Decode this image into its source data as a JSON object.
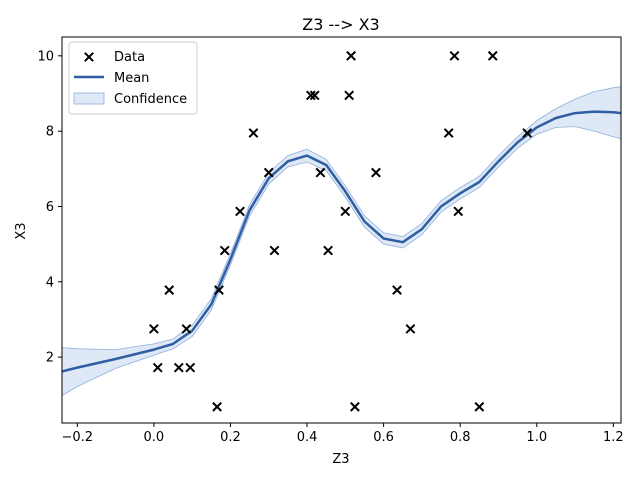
{
  "chart_data": {
    "type": "scatter",
    "title": "Z3 --> X3",
    "xlabel": "Z3",
    "ylabel": "X3",
    "xlim": [
      -0.24,
      1.22
    ],
    "ylim": [
      0.25,
      10.5
    ],
    "xticks": [
      -0.2,
      0.0,
      0.2,
      0.4,
      0.6,
      0.8,
      1.0,
      1.2
    ],
    "xtick_labels": [
      "−0.2",
      "0.0",
      "0.2",
      "0.4",
      "0.6",
      "0.8",
      "1.0",
      "1.2"
    ],
    "yticks": [
      2,
      4,
      6,
      8,
      10
    ],
    "ytick_labels": [
      "2",
      "4",
      "6",
      "8",
      "10"
    ],
    "grid": false,
    "legend": {
      "position": "top-left",
      "entries": [
        {
          "label": "Data",
          "kind": "marker"
        },
        {
          "label": "Mean",
          "kind": "line"
        },
        {
          "label": "Confidence",
          "kind": "patch"
        }
      ]
    },
    "colors": {
      "data": "#000000",
      "mean": "#2f5fa3",
      "confidence_fill": "#c5d6ee",
      "confidence_edge": "#8fb0dc"
    },
    "series": [
      {
        "name": "Data",
        "kind": "scatter",
        "points": [
          [
            0.0,
            2.75
          ],
          [
            0.01,
            1.72
          ],
          [
            0.04,
            3.78
          ],
          [
            0.065,
            1.72
          ],
          [
            0.085,
            2.75
          ],
          [
            0.095,
            1.72
          ],
          [
            0.165,
            0.68
          ],
          [
            0.17,
            3.78
          ],
          [
            0.185,
            4.83
          ],
          [
            0.225,
            5.87
          ],
          [
            0.26,
            7.95
          ],
          [
            0.3,
            6.9
          ],
          [
            0.315,
            4.83
          ],
          [
            0.41,
            8.95
          ],
          [
            0.42,
            8.95
          ],
          [
            0.435,
            6.9
          ],
          [
            0.455,
            4.83
          ],
          [
            0.5,
            5.87
          ],
          [
            0.51,
            8.95
          ],
          [
            0.515,
            10.0
          ],
          [
            0.525,
            0.68
          ],
          [
            0.58,
            6.9
          ],
          [
            0.635,
            3.78
          ],
          [
            0.67,
            2.75
          ],
          [
            0.77,
            7.95
          ],
          [
            0.785,
            10.0
          ],
          [
            0.795,
            5.87
          ],
          [
            0.85,
            0.68
          ],
          [
            0.885,
            10.0
          ],
          [
            0.975,
            7.95
          ]
        ]
      },
      {
        "name": "Mean",
        "kind": "line",
        "points": [
          [
            -0.24,
            1.62
          ],
          [
            -0.2,
            1.72
          ],
          [
            -0.1,
            1.95
          ],
          [
            0.0,
            2.2
          ],
          [
            0.05,
            2.35
          ],
          [
            0.1,
            2.7
          ],
          [
            0.15,
            3.4
          ],
          [
            0.2,
            4.6
          ],
          [
            0.25,
            5.9
          ],
          [
            0.3,
            6.75
          ],
          [
            0.35,
            7.2
          ],
          [
            0.4,
            7.35
          ],
          [
            0.45,
            7.1
          ],
          [
            0.5,
            6.4
          ],
          [
            0.55,
            5.6
          ],
          [
            0.6,
            5.15
          ],
          [
            0.65,
            5.05
          ],
          [
            0.7,
            5.4
          ],
          [
            0.75,
            6.0
          ],
          [
            0.8,
            6.35
          ],
          [
            0.85,
            6.65
          ],
          [
            0.9,
            7.2
          ],
          [
            0.95,
            7.7
          ],
          [
            1.0,
            8.1
          ],
          [
            1.05,
            8.35
          ],
          [
            1.1,
            8.48
          ],
          [
            1.15,
            8.52
          ],
          [
            1.2,
            8.5
          ],
          [
            1.22,
            8.48
          ]
        ]
      },
      {
        "name": "Confidence",
        "kind": "band",
        "upper": [
          [
            -0.24,
            2.25
          ],
          [
            -0.2,
            2.22
          ],
          [
            -0.1,
            2.2
          ],
          [
            0.0,
            2.35
          ],
          [
            0.05,
            2.48
          ],
          [
            0.1,
            2.85
          ],
          [
            0.15,
            3.55
          ],
          [
            0.2,
            4.75
          ],
          [
            0.25,
            6.05
          ],
          [
            0.3,
            6.9
          ],
          [
            0.35,
            7.35
          ],
          [
            0.4,
            7.52
          ],
          [
            0.45,
            7.25
          ],
          [
            0.5,
            6.55
          ],
          [
            0.55,
            5.75
          ],
          [
            0.6,
            5.3
          ],
          [
            0.65,
            5.2
          ],
          [
            0.7,
            5.55
          ],
          [
            0.75,
            6.15
          ],
          [
            0.8,
            6.5
          ],
          [
            0.85,
            6.8
          ],
          [
            0.9,
            7.35
          ],
          [
            0.95,
            7.85
          ],
          [
            1.0,
            8.28
          ],
          [
            1.05,
            8.6
          ],
          [
            1.1,
            8.85
          ],
          [
            1.15,
            9.05
          ],
          [
            1.2,
            9.15
          ],
          [
            1.22,
            9.18
          ]
        ],
        "lower": [
          [
            -0.24,
            0.98
          ],
          [
            -0.2,
            1.22
          ],
          [
            -0.1,
            1.7
          ],
          [
            0.0,
            2.05
          ],
          [
            0.05,
            2.22
          ],
          [
            0.1,
            2.55
          ],
          [
            0.15,
            3.25
          ],
          [
            0.2,
            4.45
          ],
          [
            0.25,
            5.75
          ],
          [
            0.3,
            6.6
          ],
          [
            0.35,
            7.05
          ],
          [
            0.4,
            7.18
          ],
          [
            0.45,
            6.95
          ],
          [
            0.5,
            6.25
          ],
          [
            0.55,
            5.45
          ],
          [
            0.6,
            5.0
          ],
          [
            0.65,
            4.9
          ],
          [
            0.7,
            5.25
          ],
          [
            0.75,
            5.85
          ],
          [
            0.8,
            6.2
          ],
          [
            0.85,
            6.5
          ],
          [
            0.9,
            7.05
          ],
          [
            0.95,
            7.55
          ],
          [
            1.0,
            7.92
          ],
          [
            1.05,
            8.1
          ],
          [
            1.1,
            8.12
          ],
          [
            1.15,
            8.0
          ],
          [
            1.2,
            7.85
          ],
          [
            1.22,
            7.8
          ]
        ]
      }
    ]
  }
}
